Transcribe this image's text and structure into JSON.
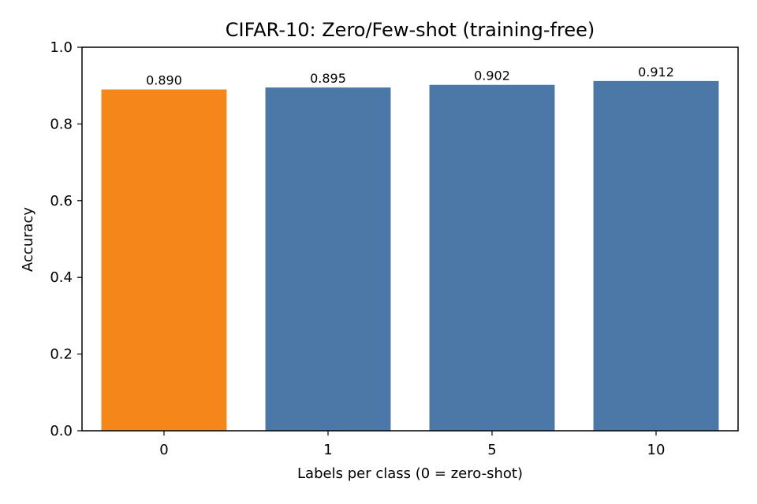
{
  "chart_data": {
    "type": "bar",
    "title": "CIFAR-10: Zero/Few-shot (training-free)",
    "xlabel": "Labels per class (0 = zero-shot)",
    "ylabel": "Accuracy",
    "categories": [
      "0",
      "1",
      "5",
      "10"
    ],
    "values": [
      0.89,
      0.895,
      0.902,
      0.912
    ],
    "data_labels": [
      "0.890",
      "0.895",
      "0.902",
      "0.912"
    ],
    "ylim": [
      0,
      1.0
    ],
    "yticks": [
      0.0,
      0.2,
      0.4,
      0.6,
      0.8,
      1.0
    ],
    "ytick_labels": [
      "0.0",
      "0.2",
      "0.4",
      "0.6",
      "0.8",
      "1.0"
    ],
    "bar_colors": [
      "#f5871a",
      "#4c78a8",
      "#4c78a8",
      "#4c78a8"
    ],
    "grid": false,
    "legend": "none"
  }
}
